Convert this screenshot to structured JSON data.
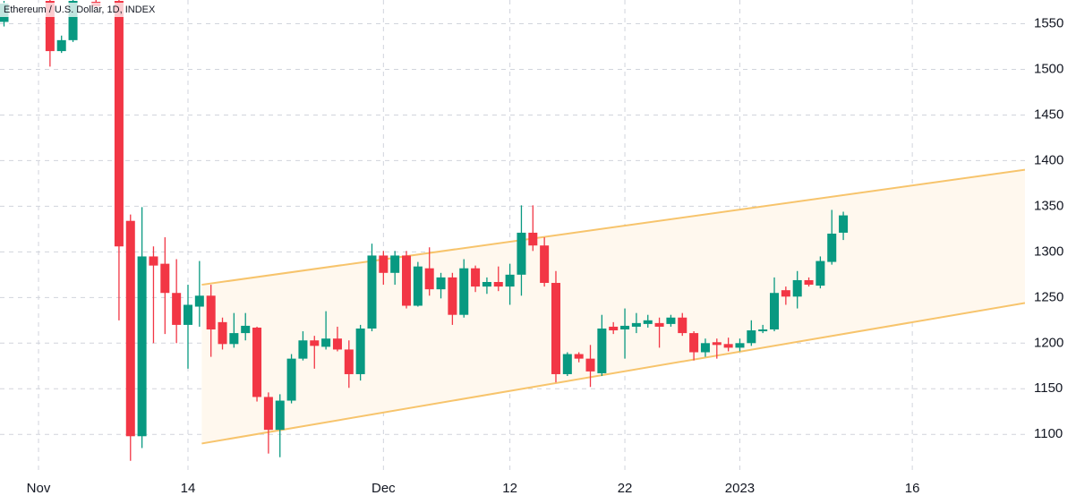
{
  "chart_data": {
    "type": "candlestick",
    "title": "Ethereum / U.S. Dollar, 1D, INDEX",
    "up_color": "#089981",
    "down_color": "#f23645",
    "grid": true,
    "xlim": [
      -3.35,
      85.8
    ],
    "xticks": [
      {
        "value": 0,
        "label": "Nov"
      },
      {
        "value": 13,
        "label": "14"
      },
      {
        "value": 30,
        "label": "Dec"
      },
      {
        "value": 41,
        "label": "12"
      },
      {
        "value": 51,
        "label": "22"
      },
      {
        "value": 61,
        "label": "2023"
      },
      {
        "value": 76,
        "label": "16"
      }
    ],
    "ylim": [
      1061,
      1576
    ],
    "yticks": [
      1100,
      1150,
      1200,
      1250,
      1300,
      1350,
      1400,
      1450,
      1500,
      1550
    ],
    "x": [
      -3,
      1,
      2,
      3,
      5,
      7,
      8,
      9,
      10,
      11,
      12,
      13,
      14,
      15,
      16,
      17,
      18,
      19,
      20,
      21,
      22,
      23,
      24,
      25,
      26,
      27,
      28,
      29,
      30,
      31,
      32,
      33,
      34,
      35,
      36,
      37,
      38,
      39,
      40,
      41,
      42,
      43,
      44,
      45,
      46,
      47,
      48,
      49,
      50,
      51,
      52,
      53,
      54,
      55,
      56,
      57,
      58,
      59,
      60,
      61,
      62,
      63,
      64,
      65,
      66,
      67,
      68,
      69,
      70
    ],
    "open": [
      1552,
      1575,
      1520,
      1532,
      1574,
      1575,
      1334,
      1098,
      1295,
      1287,
      1255,
      1220,
      1240,
      1252,
      1223,
      1199,
      1211,
      1217,
      1141,
      1105,
      1137,
      1183,
      1203,
      1196,
      1205,
      1193,
      1166,
      1216,
      1296,
      1277,
      1296,
      1241,
      1282,
      1259,
      1272,
      1231,
      1282,
      1262,
      1267,
      1262,
      1275,
      1321,
      1307,
      1266,
      1166,
      1188,
      1183,
      1167,
      1218,
      1215,
      1218,
      1221,
      1222,
      1221,
      1228,
      1211,
      1190,
      1201,
      1199,
      1195,
      1200,
      1213,
      1215,
      1258,
      1251,
      1269,
      1263,
      1289,
      1321
    ],
    "high": [
      1575,
      1576,
      1537,
      1576,
      1576,
      1576,
      1341,
      1349,
      1306,
      1316,
      1292,
      1264,
      1290,
      1264,
      1228,
      1233,
      1233,
      1218,
      1146,
      1144,
      1188,
      1213,
      1208,
      1235,
      1218,
      1203,
      1220,
      1309,
      1301,
      1301,
      1301,
      1289,
      1305,
      1277,
      1277,
      1292,
      1285,
      1272,
      1284,
      1287,
      1351,
      1351,
      1316,
      1279,
      1190,
      1190,
      1198,
      1231,
      1223,
      1238,
      1233,
      1231,
      1228,
      1231,
      1233,
      1213,
      1205,
      1205,
      1206,
      1205,
      1225,
      1220,
      1272,
      1262,
      1279,
      1272,
      1295,
      1346,
      1344
    ],
    "low": [
      1547,
      1503,
      1518,
      1530,
      1567,
      1225,
      1071,
      1085,
      1200,
      1210,
      1200,
      1172,
      1218,
      1185,
      1193,
      1195,
      1203,
      1136,
      1079,
      1075,
      1134,
      1181,
      1172,
      1193,
      1191,
      1151,
      1159,
      1213,
      1264,
      1264,
      1238,
      1240,
      1252,
      1249,
      1220,
      1228,
      1256,
      1254,
      1257,
      1242,
      1252,
      1301,
      1262,
      1157,
      1164,
      1179,
      1152,
      1164,
      1210,
      1183,
      1211,
      1217,
      1195,
      1218,
      1208,
      1181,
      1185,
      1183,
      1191,
      1191,
      1197,
      1211,
      1213,
      1242,
      1238,
      1262,
      1260,
      1286,
      1313
    ],
    "close": [
      1572,
      1520,
      1532,
      1575,
      1569,
      1306,
      1098,
      1295,
      1285,
      1255,
      1220,
      1242,
      1252,
      1215,
      1199,
      1211,
      1219,
      1141,
      1105,
      1137,
      1183,
      1203,
      1197,
      1205,
      1193,
      1166,
      1216,
      1296,
      1277,
      1296,
      1241,
      1284,
      1259,
      1272,
      1231,
      1282,
      1262,
      1267,
      1262,
      1275,
      1321,
      1307,
      1266,
      1166,
      1188,
      1183,
      1169,
      1216,
      1214,
      1219,
      1222,
      1225,
      1218,
      1228,
      1211,
      1190,
      1200,
      1198,
      1195,
      1200,
      1214,
      1215,
      1255,
      1251,
      1269,
      1264,
      1290,
      1320,
      1340
    ],
    "channel": {
      "color": "#f7c46c",
      "fill": "#fff8ee",
      "upper": {
        "x": [
          14.2,
          85.8
        ],
        "y": [
          1264,
          1390
        ]
      },
      "lower": {
        "x": [
          14.2,
          85.8
        ],
        "y": [
          1090,
          1244
        ]
      }
    }
  }
}
